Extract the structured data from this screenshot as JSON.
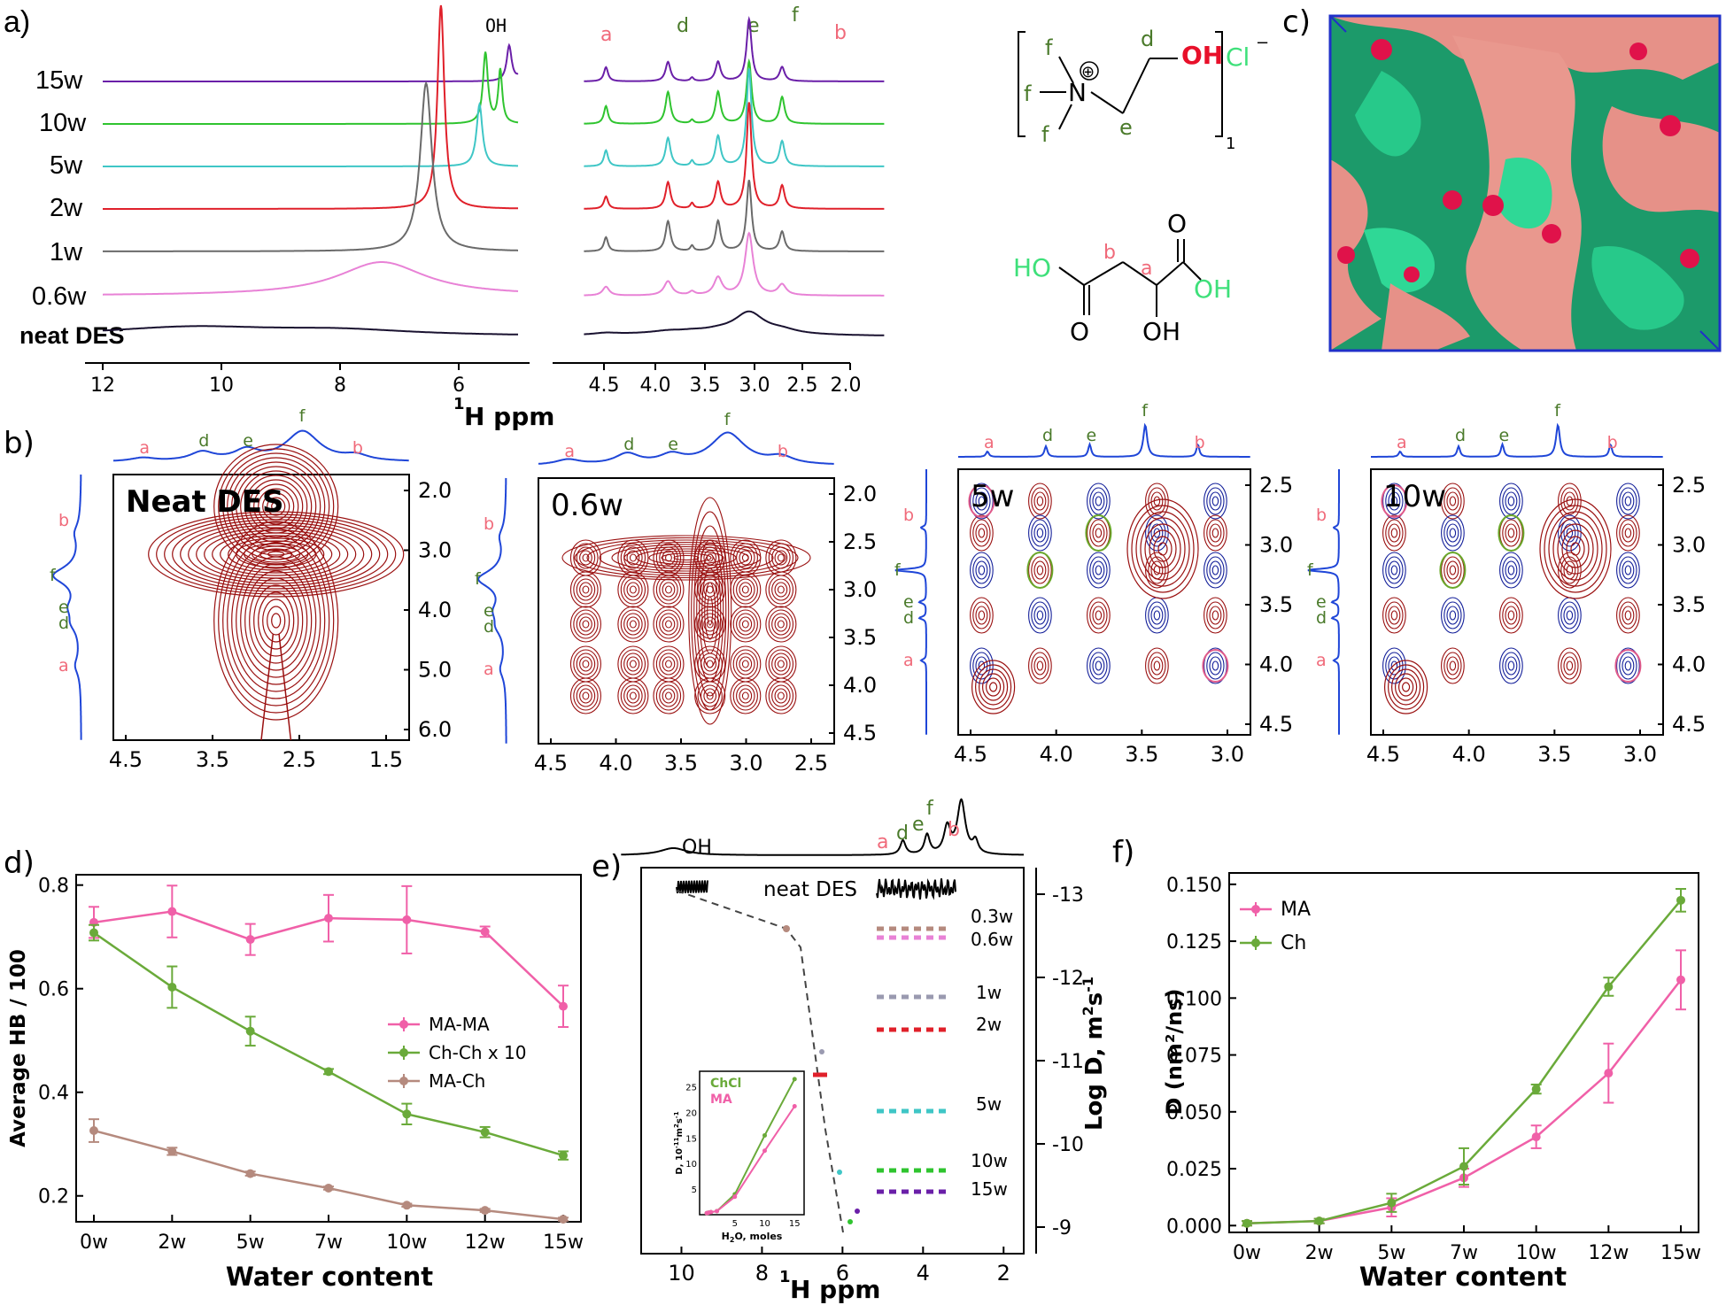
{
  "panels": {
    "a": {
      "label": "a)",
      "oh_label": "OH",
      "traces": [
        "15w",
        "10w",
        "5w",
        "2w",
        "1w",
        "0.6w",
        "neat DES"
      ],
      "trace_colors": [
        "#6a1fa8",
        "#2fc42f",
        "#3fc6c6",
        "#e0202a",
        "#6a6a6a",
        "#e882d6",
        "#1a1230"
      ],
      "peak_labels": [
        "a",
        "d",
        "e",
        "f",
        "b"
      ],
      "ticks_left": [
        "12",
        "10",
        "8",
        "6"
      ],
      "ticks_right": [
        "4.5",
        "4.0",
        "3.5",
        "3.0",
        "2.5",
        "2.0"
      ],
      "xlabel_sup": "1",
      "xlabel": "H ppm"
    },
    "structure": {
      "choline": {
        "atom_n": "N",
        "charge": "⊕",
        "oh": "OH",
        "cl": "Cl",
        "cl_charge": "−",
        "subscript": "1",
        "labels": [
          "f",
          "f",
          "f",
          "e",
          "d"
        ]
      },
      "malic": {
        "ho": "HO",
        "oh": "OH",
        "o1": "O",
        "o2": "O",
        "oh2": "OH",
        "b": "b",
        "a": "a"
      }
    },
    "c": {
      "label": "c)"
    },
    "b": {
      "label": "b)",
      "sub": [
        {
          "title": "Neat DES",
          "ticks_x": [
            "4.5",
            "3.5",
            "2.5",
            "1.5"
          ],
          "ticks_y": [
            "2.0",
            "3.0",
            "4.0",
            "5.0",
            "6.0"
          ],
          "peaks": [
            "a",
            "d",
            "e",
            "f",
            "b"
          ],
          "side": [
            "b",
            "f",
            "e",
            "d",
            "a"
          ]
        },
        {
          "title": "0.6w",
          "ticks_x": [
            "4.5",
            "4.0",
            "3.5",
            "3.0",
            "2.5"
          ],
          "ticks_y": [
            "2.0",
            "2.5",
            "3.0",
            "3.5",
            "4.0",
            "4.5"
          ],
          "peaks": [
            "a",
            "d",
            "e",
            "f",
            "b"
          ],
          "side": [
            "b",
            "f",
            "e",
            "d",
            "a"
          ]
        },
        {
          "title": "5w",
          "ticks_x": [
            "4.5",
            "4.0",
            "3.5",
            "3.0"
          ],
          "ticks_y": [
            "2.5",
            "3.0",
            "3.5",
            "4.0",
            "4.5"
          ],
          "peaks": [
            "a",
            "d",
            "e",
            "f",
            "b"
          ],
          "side": [
            "b",
            "f",
            "e",
            "d",
            "a"
          ]
        },
        {
          "title": "10w",
          "ticks_x": [
            "4.5",
            "4.0",
            "3.5",
            "3.0"
          ],
          "ticks_y": [
            "2.5",
            "3.0",
            "3.5",
            "4.0",
            "4.5"
          ],
          "peaks": [
            "a",
            "d",
            "e",
            "f",
            "b"
          ],
          "side": [
            "b",
            "f",
            "e",
            "d",
            "a"
          ]
        }
      ]
    },
    "d": {
      "label": "d)",
      "ylabel": "Average HB / 100",
      "xlabel": "Water content",
      "legend": [
        "MA-MA",
        "Ch-Ch x 10",
        "MA-Ch"
      ]
    },
    "e": {
      "label": "e)",
      "oh_label": "OH",
      "peaks": [
        "a",
        "d",
        "e",
        "f",
        "b"
      ],
      "neat": "neat DES",
      "rows": [
        "0.3w",
        "0.6w",
        "1w",
        "2w",
        "5w",
        "10w",
        "15w"
      ],
      "ticks_x": [
        "10",
        "8",
        "6",
        "4",
        "2"
      ],
      "ticks_y": [
        "-13",
        "-12",
        "-11",
        "-10",
        "-9"
      ],
      "xlabel_sup": "1",
      "xlabel": "H ppm",
      "ylabel": "Log D, m",
      "ylabel_sup": "2",
      "ylabel_tail": "s",
      "ylabel_sup2": "-1",
      "inset": {
        "legend": [
          "ChCl",
          "MA"
        ],
        "ylabel": "D, 10",
        "ylabel_sup": "-11",
        "ylabel_unit": "m",
        "ylabel_unit_sup": "2",
        "ylabel_unit_tail": "s",
        "ylabel_unit_sup2": "-1",
        "xlabel": "H",
        "xlabel_sub": "2",
        "xlabel_tail": "O, moles",
        "ticks_x": [
          "5",
          "10",
          "15"
        ],
        "ticks_y": [
          "5",
          "10",
          "15",
          "20",
          "25"
        ]
      }
    },
    "f": {
      "label": "f)",
      "ylabel": "D (nm²/ns)",
      "xlabel": "Water content",
      "legend": [
        "MA",
        "Ch"
      ]
    }
  },
  "chart_data": [
    {
      "id": "d",
      "type": "line",
      "title": "",
      "xlabel": "Water content",
      "ylabel": "Average HB / 100",
      "categories": [
        "0w",
        "2w",
        "5w",
        "7w",
        "10w",
        "12w",
        "15w"
      ],
      "ylim": [
        0.15,
        0.82
      ],
      "yticks": [
        "0.2",
        "0.4",
        "0.6",
        "0.8"
      ],
      "series": [
        {
          "name": "MA-MA",
          "color": "#f060a8",
          "values": [
            0.728,
            0.749,
            0.695,
            0.736,
            0.733,
            0.71,
            0.566
          ],
          "errors": [
            0.03,
            0.05,
            0.03,
            0.045,
            0.065,
            0.01,
            0.04
          ]
        },
        {
          "name": "Ch-Ch x 10",
          "color": "#6aaa3a",
          "values": [
            0.708,
            0.603,
            0.518,
            0.44,
            0.358,
            0.323,
            0.278
          ],
          "errors": [
            0.015,
            0.04,
            0.028,
            0.005,
            0.02,
            0.01,
            0.008
          ]
        },
        {
          "name": "MA-Ch",
          "color": "#b58a7e",
          "values": [
            0.326,
            0.286,
            0.243,
            0.215,
            0.182,
            0.172,
            0.155
          ],
          "errors": [
            0.022,
            0.007,
            0.004,
            0.003,
            0.003,
            0.003,
            0.003
          ]
        }
      ]
    },
    {
      "id": "f",
      "type": "line",
      "title": "",
      "xlabel": "Water content",
      "ylabel": "D (nm²/ns)",
      "categories": [
        "0w",
        "2w",
        "5w",
        "7w",
        "10w",
        "12w",
        "15w"
      ],
      "ylim": [
        -0.003,
        0.155
      ],
      "yticks": [
        "0.000",
        "0.025",
        "0.050",
        "0.075",
        "0.100",
        "0.125",
        "0.150"
      ],
      "series": [
        {
          "name": "MA",
          "color": "#f060a8",
          "values": [
            0.001,
            0.002,
            0.008,
            0.021,
            0.039,
            0.067,
            0.108
          ],
          "errors": [
            0.001,
            0.001,
            0.004,
            0.004,
            0.005,
            0.013,
            0.013
          ]
        },
        {
          "name": "Ch",
          "color": "#6aaa3a",
          "values": [
            0.001,
            0.002,
            0.01,
            0.026,
            0.06,
            0.105,
            0.143
          ],
          "errors": [
            0.001,
            0.001,
            0.004,
            0.008,
            0.002,
            0.004,
            0.005
          ]
        }
      ]
    },
    {
      "id": "e-inset",
      "type": "line",
      "xlabel": "H2O, moles",
      "ylabel": "D, 10-11 m2s-1",
      "ylim": [
        0,
        27
      ],
      "series": [
        {
          "name": "ChCl",
          "color": "#6aaa3a",
          "x": [
            0.3,
            0.6,
            1,
            2,
            5,
            10,
            15
          ],
          "values": [
            0.3,
            0.4,
            0.5,
            0.7,
            4,
            15.5,
            26.5
          ]
        },
        {
          "name": "MA",
          "color": "#f060a8",
          "x": [
            0.3,
            0.6,
            1,
            2,
            5,
            10,
            15
          ],
          "values": [
            0.3,
            0.4,
            0.5,
            0.7,
            3.5,
            12.5,
            21.2
          ]
        }
      ]
    }
  ]
}
